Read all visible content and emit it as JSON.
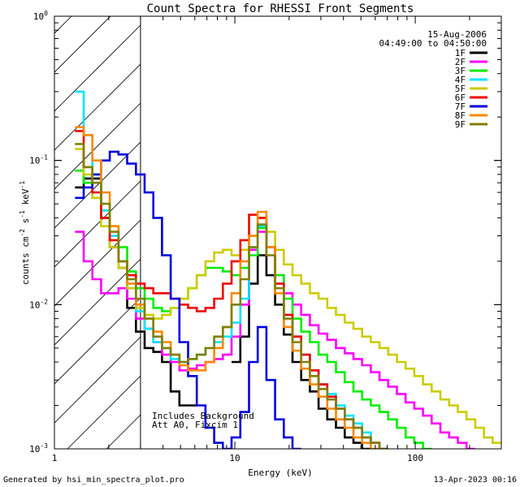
{
  "chart_data": {
    "type": "line",
    "title": "Count Spectra for RHESSI Front Segments",
    "xlabel": "Energy (keV)",
    "ylabel_parts": [
      "counts cm",
      "-2",
      " s",
      "-1",
      " keV",
      "-1"
    ],
    "xscale": "log",
    "yscale": "log",
    "xlim": [
      1,
      300
    ],
    "ylim": [
      0.001,
      1
    ],
    "x_ticks": [
      {
        "v": 1,
        "label": "1"
      },
      {
        "v": 10,
        "label": "10"
      },
      {
        "v": 100,
        "label": "100"
      }
    ],
    "y_ticks": [
      {
        "v": 0.001,
        "base": "10",
        "exp": "-3"
      },
      {
        "v": 0.01,
        "base": "10",
        "exp": "-2"
      },
      {
        "v": 0.1,
        "base": "10",
        "exp": "-1"
      },
      {
        "v": 1,
        "base": "10",
        "exp": "0"
      }
    ],
    "date": "15-Aug-2006",
    "time_range": "04:49:00 to 04:50:00",
    "annotation_lines": [
      "Includes Background",
      "Att A0, Fixcim 1"
    ],
    "hatched_region_below_keV": 3,
    "legend_position": "top-right",
    "series": [
      {
        "name": "1F",
        "color": "#000000",
        "values": [
          0.065,
          0.075,
          0.075,
          0.04,
          0.025,
          0.018,
          0.0095,
          0.0065,
          0.005,
          0.0047,
          0.004,
          0.0025,
          0.002,
          0.002,
          null,
          null,
          null,
          null,
          0.004,
          0.006,
          0.014,
          0.022,
          0.016,
          0.01,
          0.0062,
          0.004,
          0.003,
          0.0025,
          0.0019,
          0.0016,
          0.0014,
          0.0012,
          0.0011,
          0.001,
          null,
          null,
          null,
          null,
          null,
          null,
          null,
          null,
          null,
          null,
          null,
          null,
          null,
          null,
          null
        ]
      },
      {
        "name": "2F",
        "color": "#ff00ff",
        "values": [
          0.032,
          0.02,
          0.015,
          0.012,
          0.012,
          0.013,
          0.011,
          0.008,
          0.0068,
          0.0055,
          0.0045,
          0.004,
          0.0035,
          0.0036,
          0.0038,
          0.004,
          0.0042,
          0.0045,
          0.006,
          0.01,
          0.024,
          0.032,
          0.025,
          0.016,
          0.012,
          0.01,
          0.0085,
          0.0072,
          0.0063,
          0.0057,
          0.005,
          0.0046,
          0.0042,
          0.0038,
          0.0034,
          0.003,
          0.0027,
          0.0024,
          0.0021,
          0.0019,
          0.0017,
          0.0015,
          0.0013,
          0.0012,
          0.0011,
          0.001,
          null,
          null,
          null
        ]
      },
      {
        "name": "3F",
        "color": "#00ee00",
        "values": [
          0.085,
          0.07,
          0.055,
          0.045,
          0.035,
          0.025,
          0.017,
          0.013,
          0.011,
          0.0095,
          0.009,
          0.0095,
          0.011,
          0.013,
          0.016,
          0.018,
          0.018,
          0.017,
          0.016,
          0.018,
          0.022,
          0.034,
          0.025,
          0.016,
          0.011,
          0.008,
          0.0065,
          0.0055,
          0.0045,
          0.004,
          0.0034,
          0.0029,
          0.0025,
          0.0022,
          0.002,
          0.0018,
          0.0016,
          0.0014,
          0.0012,
          0.0011,
          0.001,
          null,
          null,
          null,
          null,
          null,
          null,
          null,
          null
        ]
      },
      {
        "name": "4F",
        "color": "#00e5ff",
        "values": [
          0.3,
          0.15,
          0.08,
          0.045,
          0.03,
          0.02,
          0.013,
          0.009,
          0.0068,
          0.0055,
          0.005,
          0.0042,
          0.004,
          0.0042,
          0.0045,
          0.005,
          0.0055,
          0.006,
          0.0075,
          0.011,
          0.025,
          0.035,
          0.025,
          0.014,
          0.0085,
          0.006,
          0.0045,
          0.0035,
          0.0028,
          0.0024,
          0.002,
          0.0017,
          0.0015,
          0.0013,
          0.0011,
          0.001,
          null,
          null,
          null,
          null,
          null,
          null,
          null,
          null,
          null,
          null,
          null,
          null,
          null
        ]
      },
      {
        "name": "5F",
        "color": "#cccc00",
        "values": [
          0.12,
          0.08,
          0.055,
          0.035,
          0.025,
          0.018,
          0.013,
          0.0095,
          0.0085,
          0.008,
          0.0085,
          0.0095,
          0.011,
          0.013,
          0.016,
          0.02,
          0.023,
          0.024,
          0.022,
          0.024,
          0.03,
          0.04,
          0.032,
          0.024,
          0.019,
          0.016,
          0.014,
          0.012,
          0.011,
          0.0095,
          0.0085,
          0.0075,
          0.0068,
          0.006,
          0.0055,
          0.005,
          0.0045,
          0.004,
          0.0036,
          0.0032,
          0.0028,
          0.0025,
          0.0022,
          0.002,
          0.0018,
          0.0016,
          0.0014,
          0.0012,
          0.0011
        ]
      },
      {
        "name": "6F",
        "color": "#ee0000",
        "values": [
          0.16,
          0.09,
          0.06,
          0.04,
          0.028,
          0.02,
          0.016,
          0.014,
          0.013,
          0.012,
          0.012,
          0.011,
          0.01,
          0.0095,
          0.009,
          0.0095,
          0.011,
          0.014,
          0.02,
          0.028,
          0.042,
          0.04,
          0.025,
          0.014,
          0.0085,
          0.006,
          0.0045,
          0.0035,
          0.0028,
          0.0023,
          0.0019,
          0.0016,
          0.0014,
          0.0012,
          0.0011,
          0.001,
          null,
          null,
          null,
          null,
          null,
          null,
          null,
          null,
          null,
          null,
          null,
          null,
          null
        ]
      },
      {
        "name": "7F",
        "color": "#0000dd",
        "values": [
          0.055,
          0.065,
          0.08,
          0.1,
          0.115,
          0.11,
          0.095,
          0.08,
          0.06,
          0.04,
          0.022,
          0.011,
          0.0055,
          0.0032,
          0.002,
          0.0014,
          0.0011,
          0.001,
          0.0012,
          0.0018,
          0.004,
          0.007,
          0.003,
          0.0016,
          0.0012,
          0.001,
          null,
          null,
          null,
          null,
          null,
          null,
          null,
          null,
          null,
          null,
          null,
          null,
          null,
          null,
          null,
          null,
          null,
          null,
          null,
          null,
          null,
          null,
          null
        ]
      },
      {
        "name": "8F",
        "color": "#ff8800",
        "values": [
          0.17,
          0.15,
          0.1,
          0.06,
          0.035,
          0.02,
          0.014,
          0.01,
          0.008,
          0.0065,
          0.0055,
          0.0045,
          0.0038,
          0.0035,
          0.0035,
          0.004,
          0.005,
          0.007,
          0.012,
          0.02,
          0.03,
          0.044,
          0.025,
          0.012,
          0.007,
          0.0048,
          0.0036,
          0.0028,
          0.0023,
          0.0019,
          0.0016,
          0.0014,
          0.0012,
          0.0011,
          0.001,
          null,
          null,
          null,
          null,
          null,
          null,
          null,
          null,
          null,
          null,
          null,
          null,
          null,
          null
        ]
      },
      {
        "name": "9F",
        "color": "#808000",
        "values": [
          0.13,
          0.09,
          0.07,
          0.05,
          0.032,
          0.02,
          0.015,
          0.011,
          0.008,
          0.006,
          0.005,
          0.0045,
          0.004,
          0.0042,
          0.0045,
          0.005,
          0.006,
          0.007,
          0.01,
          0.015,
          0.025,
          0.036,
          0.022,
          0.013,
          0.008,
          0.0055,
          0.004,
          0.0032,
          0.0026,
          0.0022,
          0.0019,
          0.0016,
          0.0014,
          0.0012,
          0.0011,
          0.001,
          null,
          null,
          null,
          null,
          null,
          null,
          null,
          null,
          null,
          null,
          null,
          null,
          null
        ]
      }
    ]
  },
  "footer": {
    "generated_by": "Generated by hsi_min_spectra_plot.pro",
    "timestamp": "13-Apr-2023 00:16"
  }
}
